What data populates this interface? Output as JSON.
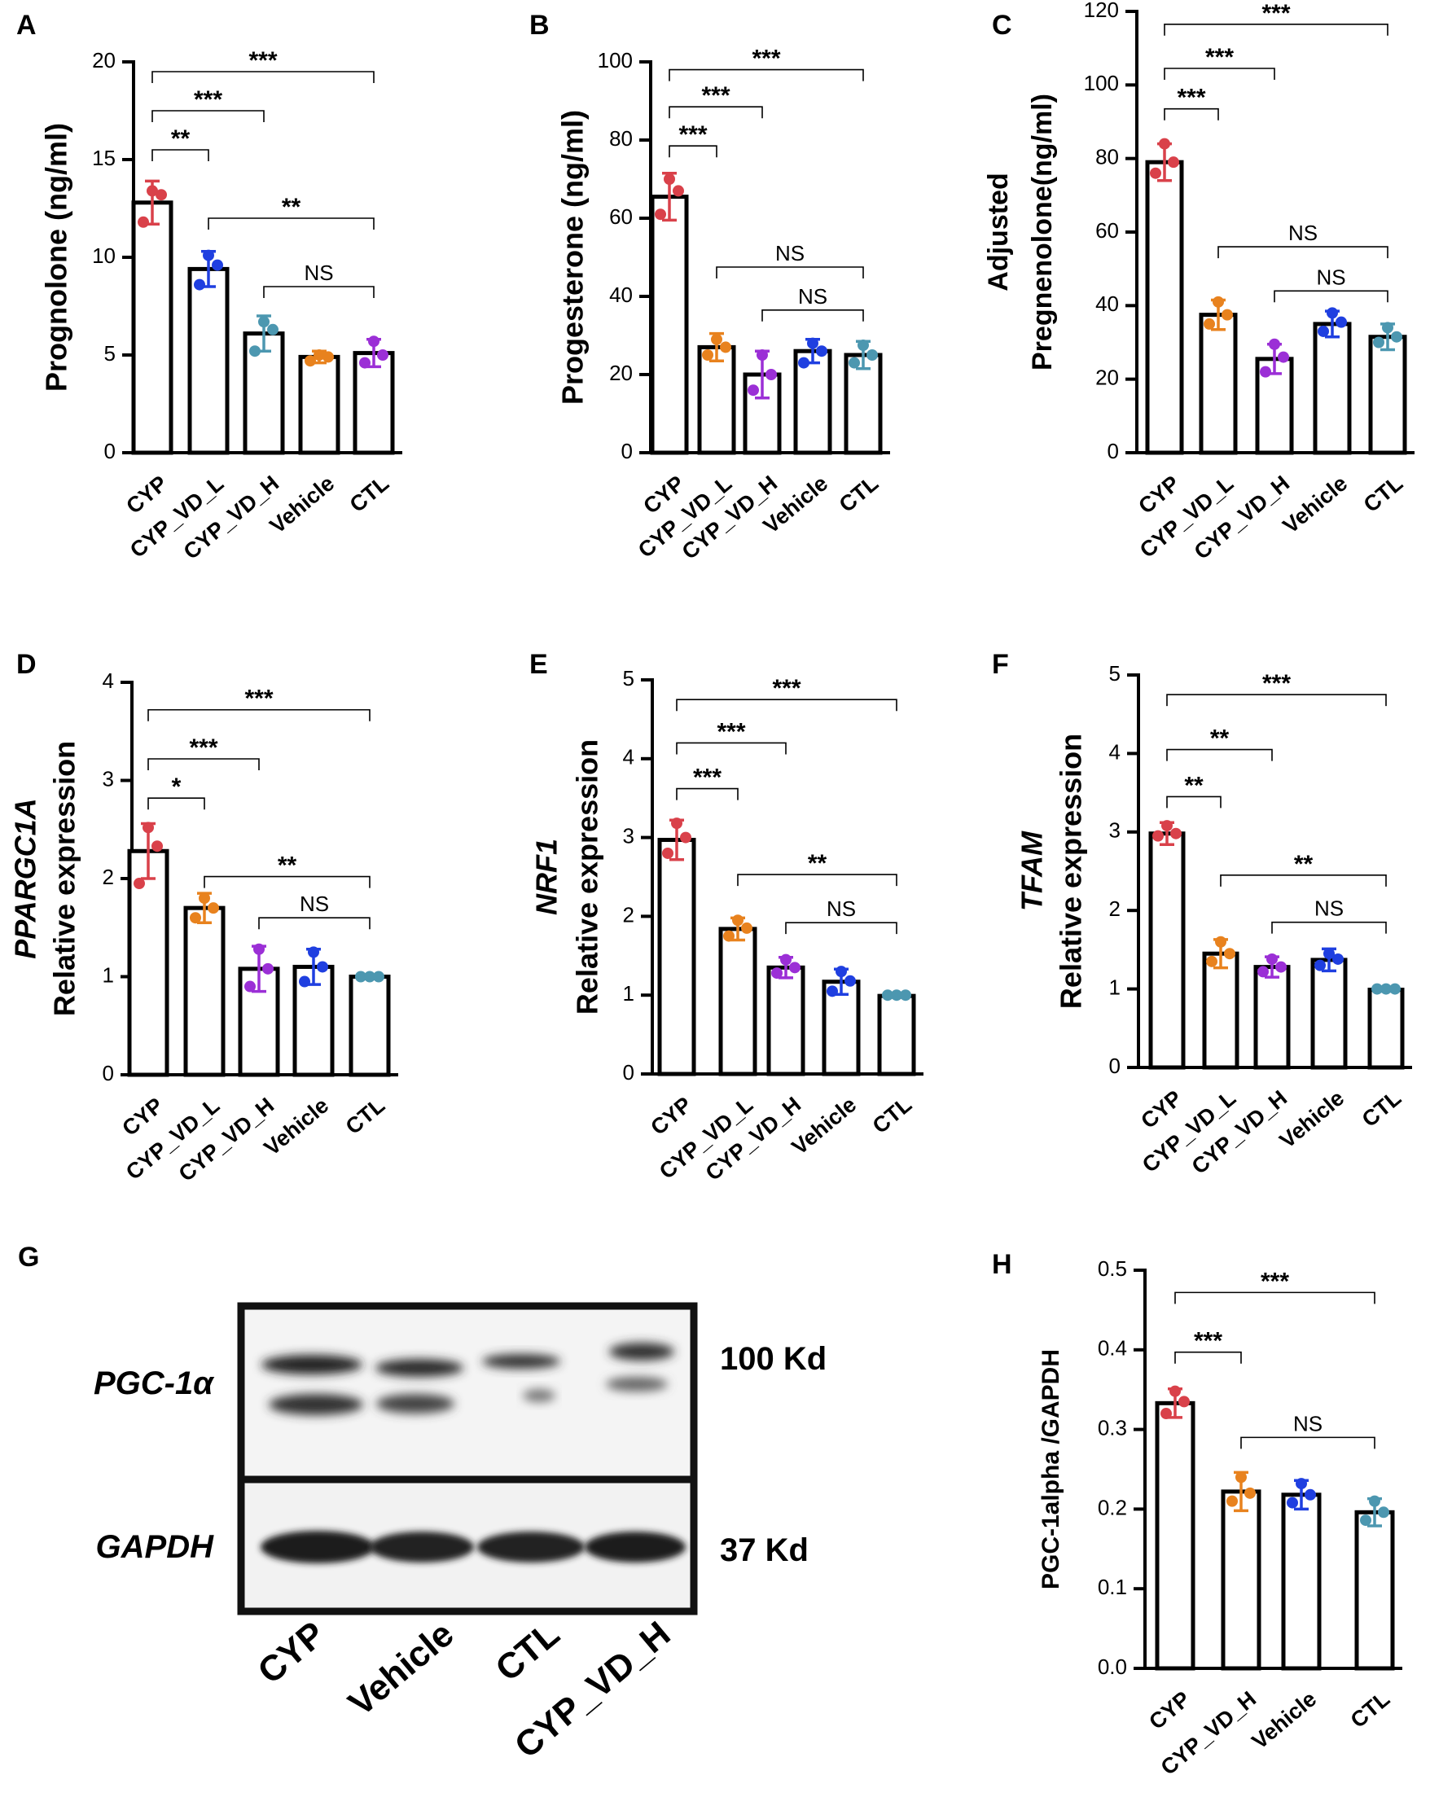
{
  "colors": {
    "CYP": "#d9414a",
    "CYP_VD_L": "#e8821e",
    "CYP_VD_H": "#9b2fd6",
    "Vehicle_orange": "#e8821e",
    "Vehicle_blue": "#1f3fe0",
    "CTL": "#4c97b0",
    "blue": "#1f3fe0"
  },
  "chart_data": [
    {
      "id": "A",
      "type": "bar",
      "panel_label": "A",
      "ylabel": "Prognolone (ng/ml)",
      "categories": [
        "CYP",
        "CYP_VD_L",
        "CYP_VD_H",
        "Vehicle",
        "CTL"
      ],
      "colors": [
        "#d9414a",
        "#1f3fe0",
        "#4c97b0",
        "#e8821e",
        "#9b2fd6"
      ],
      "values": [
        12.8,
        9.4,
        6.1,
        4.9,
        5.1
      ],
      "errors": [
        1.1,
        0.9,
        0.9,
        0.3,
        0.7
      ],
      "points": [
        [
          11.8,
          13.2,
          13.4
        ],
        [
          8.6,
          9.6,
          10.1
        ],
        [
          5.2,
          6.3,
          6.7
        ],
        [
          4.7,
          4.9,
          5.0
        ],
        [
          4.6,
          5.0,
          5.7
        ]
      ],
      "ylim": [
        0,
        20
      ],
      "yticks": [
        0,
        5,
        10,
        15,
        20
      ],
      "brackets": [
        {
          "from": 0,
          "to": 4,
          "y": 19.5,
          "label": "***"
        },
        {
          "from": 0,
          "to": 2,
          "y": 17.5,
          "label": "***"
        },
        {
          "from": 0,
          "to": 1,
          "y": 15.5,
          "label": "**"
        },
        {
          "from": 1,
          "to": 4,
          "y": 12.0,
          "label": "**"
        },
        {
          "from": 2,
          "to": 4,
          "y": 8.5,
          "label": "NS"
        }
      ]
    },
    {
      "id": "B",
      "type": "bar",
      "panel_label": "B",
      "ylabel": "Progesterone (ng/ml)",
      "categories": [
        "CYP",
        "CYP_VD_L",
        "CYP_VD_H",
        "Vehicle",
        "CTL"
      ],
      "colors": [
        "#d9414a",
        "#e8821e",
        "#9b2fd6",
        "#1f3fe0",
        "#4c97b0"
      ],
      "values": [
        65.5,
        27.0,
        20.0,
        26.0,
        25.0
      ],
      "errors": [
        6.0,
        3.5,
        6.0,
        3.0,
        3.5
      ],
      "points": [
        [
          61.0,
          67.0,
          70.0
        ],
        [
          25.0,
          27.0,
          29.0
        ],
        [
          16.0,
          20.0,
          25.0
        ],
        [
          23.0,
          26.0,
          28.0
        ],
        [
          23.0,
          25.0,
          27.5
        ]
      ],
      "ylim": [
        0,
        100
      ],
      "yticks": [
        0,
        20,
        40,
        60,
        80,
        100
      ],
      "brackets": [
        {
          "from": 0,
          "to": 4,
          "y": 98.0,
          "label": "***"
        },
        {
          "from": 0,
          "to": 2,
          "y": 88.5,
          "label": "***"
        },
        {
          "from": 0,
          "to": 1,
          "y": 78.5,
          "label": "***"
        },
        {
          "from": 1,
          "to": 4,
          "y": 47.5,
          "label": "NS"
        },
        {
          "from": 2,
          "to": 4,
          "y": 36.5,
          "label": "NS"
        }
      ]
    },
    {
      "id": "C",
      "type": "bar",
      "panel_label": "C",
      "ylabel": "Adjusted\nPregnenolone(ng/ml)",
      "categories": [
        "CYP",
        "CYP_VD_L",
        "CYP_VD_H",
        "Vehicle",
        "CTL"
      ],
      "colors": [
        "#d9414a",
        "#e8821e",
        "#9b2fd6",
        "#1f3fe0",
        "#4c97b0"
      ],
      "values": [
        79.0,
        37.5,
        25.5,
        35.0,
        31.5
      ],
      "errors": [
        5.0,
        4.0,
        4.0,
        3.5,
        3.5
      ],
      "points": [
        [
          76.0,
          79.0,
          84.0
        ],
        [
          35.0,
          37.5,
          41.0
        ],
        [
          22.0,
          26.0,
          29.5
        ],
        [
          33.0,
          35.5,
          38.0
        ],
        [
          30.0,
          31.5,
          34.0
        ]
      ],
      "ylim": [
        0,
        120
      ],
      "yticks": [
        0,
        20,
        40,
        60,
        80,
        100,
        120
      ],
      "brackets": [
        {
          "from": 0,
          "to": 4,
          "y": 116.5,
          "label": "***"
        },
        {
          "from": 0,
          "to": 2,
          "y": 104.5,
          "label": "***"
        },
        {
          "from": 0,
          "to": 1,
          "y": 93.5,
          "label": "***"
        },
        {
          "from": 1,
          "to": 4,
          "y": 56.0,
          "label": "NS"
        },
        {
          "from": 2,
          "to": 4,
          "y": 44.0,
          "label": "NS"
        }
      ]
    },
    {
      "id": "D",
      "type": "bar",
      "panel_label": "D",
      "ylabel_italic": "PPARGC1A",
      "ylabel": "Relative expression",
      "categories": [
        "CYP",
        "CYP_VD_L",
        "CYP_VD_H",
        "Vehicle",
        "CTL"
      ],
      "colors": [
        "#d9414a",
        "#e8821e",
        "#9b2fd6",
        "#1f3fe0",
        "#4c97b0"
      ],
      "values": [
        2.28,
        1.7,
        1.08,
        1.1,
        1.0
      ],
      "errors": [
        0.28,
        0.15,
        0.23,
        0.18,
        0.02
      ],
      "points": [
        [
          1.95,
          2.33,
          2.52
        ],
        [
          1.6,
          1.7,
          1.8
        ],
        [
          0.9,
          1.08,
          1.28
        ],
        [
          0.95,
          1.1,
          1.25
        ],
        [
          1.0,
          1.0,
          1.0
        ]
      ],
      "ylim": [
        0,
        4
      ],
      "yticks": [
        0,
        1,
        2,
        3,
        4
      ],
      "brackets": [
        {
          "from": 0,
          "to": 4,
          "y": 3.72,
          "label": "***"
        },
        {
          "from": 0,
          "to": 2,
          "y": 3.22,
          "label": "***"
        },
        {
          "from": 0,
          "to": 1,
          "y": 2.82,
          "label": "*"
        },
        {
          "from": 1,
          "to": 4,
          "y": 2.02,
          "label": "**"
        },
        {
          "from": 2,
          "to": 4,
          "y": 1.6,
          "label": "NS"
        }
      ]
    },
    {
      "id": "E",
      "type": "bar",
      "panel_label": "E",
      "ylabel_italic": "NRF1",
      "ylabel": "Relative expression",
      "categories": [
        "CYP",
        "CYP_VD_L",
        "CYP_VD_H",
        "Vehicle",
        "CTL"
      ],
      "colors": [
        "#d9414a",
        "#e8821e",
        "#9b2fd6",
        "#1f3fe0",
        "#4c97b0"
      ],
      "values": [
        2.97,
        1.84,
        1.35,
        1.17,
        0.99
      ],
      "errors": [
        0.25,
        0.14,
        0.13,
        0.16,
        0.02
      ],
      "points": [
        [
          2.8,
          3.0,
          3.18
        ],
        [
          1.75,
          1.85,
          1.95
        ],
        [
          1.28,
          1.35,
          1.45
        ],
        [
          1.05,
          1.18,
          1.3
        ],
        [
          1.0,
          1.0,
          1.0
        ]
      ],
      "ylim": [
        0,
        5
      ],
      "yticks": [
        0,
        1,
        2,
        3,
        4,
        5
      ],
      "brackets": [
        {
          "from": 0,
          "to": 4,
          "y": 4.75,
          "label": "***"
        },
        {
          "from": 0,
          "to": 2,
          "y": 4.2,
          "label": "***"
        },
        {
          "from": 0,
          "to": 1,
          "y": 3.62,
          "label": "***"
        },
        {
          "from": 1,
          "to": 4,
          "y": 2.53,
          "label": "**"
        },
        {
          "from": 2,
          "to": 4,
          "y": 1.92,
          "label": "NS"
        }
      ]
    },
    {
      "id": "F",
      "type": "bar",
      "panel_label": "F",
      "ylabel_italic": "TFAM",
      "ylabel": "Relative expression",
      "categories": [
        "CYP",
        "CYP_VD_L",
        "CYP_VD_H",
        "Vehicle",
        "CTL"
      ],
      "colors": [
        "#d9414a",
        "#e8821e",
        "#9b2fd6",
        "#1f3fe0",
        "#4c97b0"
      ],
      "values": [
        2.98,
        1.45,
        1.28,
        1.37,
        0.99
      ],
      "errors": [
        0.14,
        0.18,
        0.13,
        0.14,
        0.02
      ],
      "points": [
        [
          2.95,
          2.98,
          3.08
        ],
        [
          1.35,
          1.45,
          1.6
        ],
        [
          1.22,
          1.28,
          1.38
        ],
        [
          1.3,
          1.38,
          1.45
        ],
        [
          1.0,
          1.0,
          1.0
        ]
      ],
      "ylim": [
        0,
        5
      ],
      "yticks": [
        0,
        1,
        2,
        3,
        4,
        5
      ],
      "brackets": [
        {
          "from": 0,
          "to": 4,
          "y": 4.75,
          "label": "***"
        },
        {
          "from": 0,
          "to": 2,
          "y": 4.05,
          "label": "**"
        },
        {
          "from": 0,
          "to": 1,
          "y": 3.45,
          "label": "**"
        },
        {
          "from": 1,
          "to": 4,
          "y": 2.45,
          "label": "**"
        },
        {
          "from": 2,
          "to": 4,
          "y": 1.85,
          "label": "NS"
        }
      ]
    },
    {
      "id": "H",
      "type": "bar",
      "panel_label": "H",
      "ylabel": "PGC-1alpha /GAPDH",
      "categories": [
        "CYP",
        "CYP_VD_H",
        "Vehicle",
        "CTL"
      ],
      "colors": [
        "#d9414a",
        "#e8821e",
        "#1f3fe0",
        "#4c97b0"
      ],
      "values": [
        0.333,
        0.222,
        0.218,
        0.196
      ],
      "errors": [
        0.018,
        0.024,
        0.018,
        0.017
      ],
      "points": [
        [
          0.32,
          0.335,
          0.348
        ],
        [
          0.21,
          0.22,
          0.24
        ],
        [
          0.208,
          0.218,
          0.232
        ],
        [
          0.186,
          0.196,
          0.21
        ]
      ],
      "ylim": [
        0,
        0.5
      ],
      "yticks": [
        0.0,
        0.1,
        0.2,
        0.3,
        0.4,
        0.5
      ],
      "brackets": [
        {
          "from": 0,
          "to": 3,
          "y": 0.472,
          "label": "***"
        },
        {
          "from": 0,
          "to": 1,
          "y": 0.397,
          "label": "***"
        },
        {
          "from": 1,
          "to": 3,
          "y": 0.29,
          "label": "NS"
        }
      ]
    }
  ],
  "blot": {
    "panel_label": "G",
    "rows": [
      {
        "protein": "PGC-1α",
        "size": "100 Kd"
      },
      {
        "protein": "GAPDH",
        "size": "37 Kd"
      }
    ],
    "lanes": [
      "CYP",
      "Vehicle",
      "CTL",
      "CYP_VD_H"
    ]
  }
}
